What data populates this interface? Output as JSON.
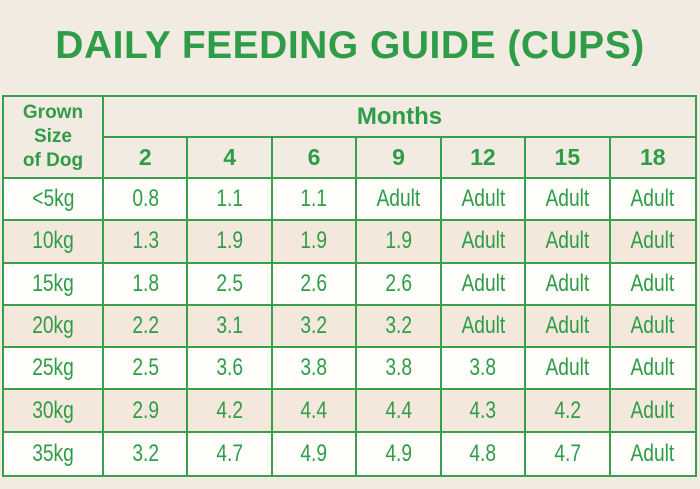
{
  "title": "DAILY FEEDING GUIDE (CUPS)",
  "colors": {
    "page_bg": "#f2ebe1",
    "green": "#2f9c48",
    "border": "#3b9e4d",
    "row_white": "#fffefb",
    "row_cream": "#f4e8dc"
  },
  "table": {
    "corner_header": "Grown\nSize\nof Dog",
    "months_label": "Months"
  },
  "chart_data": {
    "type": "table",
    "title": "DAILY FEEDING GUIDE (CUPS)",
    "row_header": "Grown Size of Dog",
    "column_group_label": "Months",
    "columns": [
      "2",
      "4",
      "6",
      "9",
      "12",
      "15",
      "18"
    ],
    "rows": [
      {
        "size": "<5kg",
        "values": [
          "0.8",
          "1.1",
          "1.1",
          "Adult",
          "Adult",
          "Adult",
          "Adult"
        ]
      },
      {
        "size": "10kg",
        "values": [
          "1.3",
          "1.9",
          "1.9",
          "1.9",
          "Adult",
          "Adult",
          "Adult"
        ]
      },
      {
        "size": "15kg",
        "values": [
          "1.8",
          "2.5",
          "2.6",
          "2.6",
          "Adult",
          "Adult",
          "Adult"
        ]
      },
      {
        "size": "20kg",
        "values": [
          "2.2",
          "3.1",
          "3.2",
          "3.2",
          "Adult",
          "Adult",
          "Adult"
        ]
      },
      {
        "size": "25kg",
        "values": [
          "2.5",
          "3.6",
          "3.8",
          "3.8",
          "3.8",
          "Adult",
          "Adult"
        ]
      },
      {
        "size": "30kg",
        "values": [
          "2.9",
          "4.2",
          "4.4",
          "4.4",
          "4.3",
          "4.2",
          "Adult"
        ]
      },
      {
        "size": "35kg",
        "values": [
          "3.2",
          "4.7",
          "4.9",
          "4.9",
          "4.8",
          "4.7",
          "Adult"
        ]
      }
    ]
  }
}
